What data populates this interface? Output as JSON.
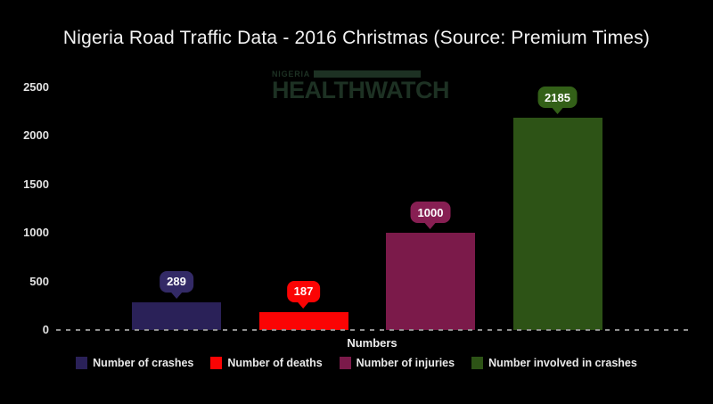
{
  "title": "Nigeria Road Traffic Data - 2016 Christmas (Source: Premium Times)",
  "watermark": {
    "line1": "NIGERIA",
    "line2": "HEALTHWATCH",
    "color": "#1d3123"
  },
  "chart_data": {
    "type": "bar",
    "title": "Nigeria Road Traffic Data - 2016 Christmas (Source: Premium Times)",
    "xlabel": "Numbers",
    "ylabel": "",
    "categories": [
      "Number of crashes",
      "Number of deaths",
      "Number of injuries",
      "Number involved in crashes"
    ],
    "values": [
      289,
      187,
      1000,
      2185
    ],
    "data_labels": [
      "289",
      "187",
      "1000",
      "2185"
    ],
    "bar_colors": [
      "#2a2158",
      "#fb0404",
      "#7b1a4a",
      "#2d5316"
    ],
    "label_bubble_colors": [
      "#332a66",
      "#fb0404",
      "#871f53",
      "#336018"
    ],
    "yticks": [
      0,
      500,
      1000,
      1500,
      2000,
      2500
    ],
    "ylim": [
      0,
      2500
    ],
    "grid": false,
    "legend_position": "bottom",
    "background_color": "#000000",
    "baseline_dash_color": "#8f8f8f",
    "axis_text_color": "#e2e2e2",
    "title_color": "#f3f3f3"
  }
}
